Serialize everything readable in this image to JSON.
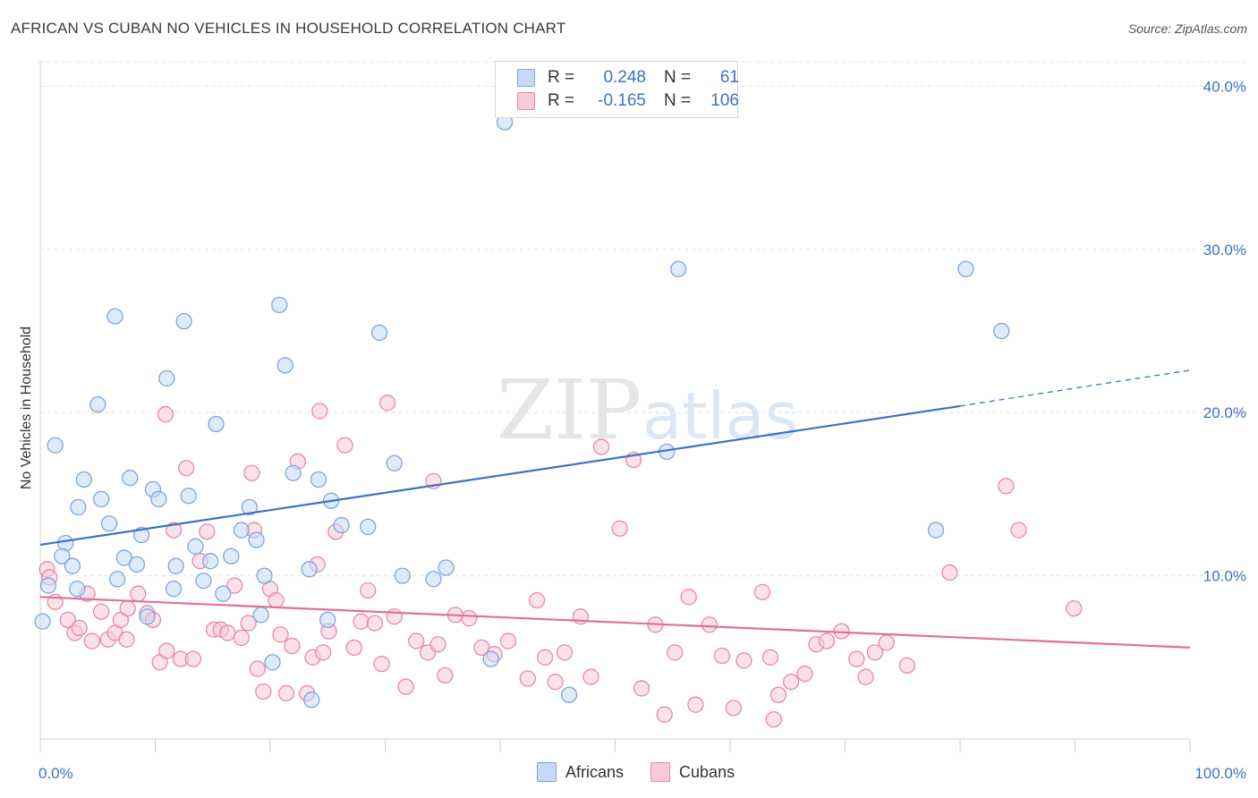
{
  "header": {
    "title": "AFRICAN VS CUBAN NO VEHICLES IN HOUSEHOLD CORRELATION CHART",
    "source": "Source: ZipAtlas.com"
  },
  "watermark": {
    "zip": "ZIP",
    "atlas": "atlas"
  },
  "legend": {
    "rows": [
      {
        "r_label": "R =",
        "r_value": "0.248",
        "n_label": "N =",
        "n_value": "61",
        "color": "#7aa7e0",
        "fill": "#c6daf5"
      },
      {
        "r_label": "R =",
        "r_value": "-0.165",
        "n_label": "N =",
        "n_value": "106",
        "color": "#e889a8",
        "fill": "#f8c9d8"
      }
    ]
  },
  "bottom_legend": {
    "africans": "Africans",
    "cubans": "Cubans"
  },
  "chart_data": {
    "type": "scatter",
    "title": "AFRICAN VS CUBAN NO VEHICLES IN HOUSEHOLD CORRELATION CHART",
    "ylabel": "No Vehicles in Household",
    "xlabel": "",
    "xlim": [
      0,
      100
    ],
    "ylim": [
      0,
      42
    ],
    "x_tick_labels": [
      "0.0%",
      "100.0%"
    ],
    "y_ticks": [
      10,
      20,
      30,
      40
    ],
    "y_tick_labels": [
      "10.0%",
      "20.0%",
      "30.0%",
      "40.0%"
    ],
    "grid": true,
    "legend_placement": "top-center",
    "series": [
      {
        "name": "Africans",
        "color": "#3b73c4",
        "marker_fill": "#c6daf5",
        "marker_stroke": "#7aa7e0",
        "trend": {
          "x0": 0,
          "y0": 11.9,
          "x1": 80,
          "y1": 20.4,
          "dash_to_x": 100,
          "dash_to_y": 22.6
        },
        "points": [
          [
            1.3,
            18.0
          ],
          [
            6.5,
            25.9
          ],
          [
            12.5,
            25.6
          ],
          [
            20.8,
            26.6
          ],
          [
            11,
            22.1
          ],
          [
            21.3,
            22.9
          ],
          [
            29.5,
            24.9
          ],
          [
            5,
            20.5
          ],
          [
            15.3,
            19.3
          ],
          [
            3.8,
            15.9
          ],
          [
            5.3,
            14.7
          ],
          [
            7.8,
            16.0
          ],
          [
            9.8,
            15.3
          ],
          [
            12.9,
            14.9
          ],
          [
            10.3,
            14.7
          ],
          [
            3.3,
            14.2
          ],
          [
            18.2,
            14.2
          ],
          [
            6,
            13.2
          ],
          [
            17.5,
            12.8
          ],
          [
            8.8,
            12.5
          ],
          [
            2.2,
            12.0
          ],
          [
            18.8,
            12.2
          ],
          [
            13.5,
            11.8
          ],
          [
            22,
            16.3
          ],
          [
            24.2,
            15.9
          ],
          [
            25.3,
            14.6
          ],
          [
            26.2,
            13.1
          ],
          [
            28.5,
            13.0
          ],
          [
            1.9,
            11.2
          ],
          [
            7.3,
            11.1
          ],
          [
            8.4,
            10.7
          ],
          [
            14.8,
            10.9
          ],
          [
            16.6,
            11.2
          ],
          [
            2.8,
            10.6
          ],
          [
            11.8,
            10.6
          ],
          [
            19.5,
            10.0
          ],
          [
            23.4,
            10.4
          ],
          [
            30.8,
            16.9
          ],
          [
            6.7,
            9.8
          ],
          [
            14.2,
            9.7
          ],
          [
            0.7,
            9.4
          ],
          [
            3.2,
            9.2
          ],
          [
            11.6,
            9.2
          ],
          [
            15.9,
            8.9
          ],
          [
            9.3,
            7.5
          ],
          [
            19.2,
            7.6
          ],
          [
            25,
            7.3
          ],
          [
            31.5,
            10.0
          ],
          [
            34.2,
            9.8
          ],
          [
            35.3,
            10.5
          ],
          [
            39.2,
            4.9
          ],
          [
            46,
            2.7
          ],
          [
            40.4,
            37.8
          ],
          [
            54.5,
            17.6
          ],
          [
            55.5,
            28.8
          ],
          [
            77.9,
            12.8
          ],
          [
            80.5,
            28.8
          ],
          [
            83.6,
            25.0
          ],
          [
            0.2,
            7.2
          ],
          [
            23.6,
            2.4
          ],
          [
            20.2,
            4.7
          ]
        ]
      },
      {
        "name": "Cubans",
        "color": "#e0709a",
        "marker_fill": "#f8c9d8",
        "marker_stroke": "#e889a8",
        "trend": {
          "x0": 0,
          "y0": 8.7,
          "x1": 100,
          "y1": 5.6
        },
        "points": [
          [
            0.6,
            10.4
          ],
          [
            0.8,
            9.9
          ],
          [
            1.3,
            8.4
          ],
          [
            2.4,
            7.3
          ],
          [
            3,
            6.5
          ],
          [
            3.4,
            6.8
          ],
          [
            4.5,
            6.0
          ],
          [
            4.1,
            8.9
          ],
          [
            5.3,
            7.8
          ],
          [
            5.9,
            6.1
          ],
          [
            6.5,
            6.5
          ],
          [
            7,
            7.3
          ],
          [
            7.6,
            8.0
          ],
          [
            8.5,
            8.9
          ],
          [
            9.3,
            7.7
          ],
          [
            9.8,
            7.3
          ],
          [
            10.4,
            4.7
          ],
          [
            11,
            5.4
          ],
          [
            11.6,
            12.8
          ],
          [
            12.2,
            4.9
          ],
          [
            12.7,
            16.6
          ],
          [
            13.3,
            4.9
          ],
          [
            13.9,
            10.9
          ],
          [
            14.5,
            12.7
          ],
          [
            15.1,
            6.7
          ],
          [
            15.7,
            6.7
          ],
          [
            16.3,
            6.5
          ],
          [
            16.9,
            9.4
          ],
          [
            17.5,
            6.2
          ],
          [
            18.1,
            7.1
          ],
          [
            18.4,
            16.3
          ],
          [
            18.9,
            4.3
          ],
          [
            19.4,
            2.9
          ],
          [
            20,
            9.2
          ],
          [
            20.5,
            8.5
          ],
          [
            20.9,
            6.4
          ],
          [
            21.4,
            2.8
          ],
          [
            21.9,
            5.7
          ],
          [
            22.4,
            17.0
          ],
          [
            23.2,
            2.8
          ],
          [
            23.7,
            5.0
          ],
          [
            24.1,
            10.7
          ],
          [
            24.6,
            5.3
          ],
          [
            25.1,
            6.6
          ],
          [
            25.7,
            12.7
          ],
          [
            26.5,
            18.0
          ],
          [
            27.3,
            5.6
          ],
          [
            27.9,
            7.2
          ],
          [
            28.5,
            9.1
          ],
          [
            29.1,
            7.1
          ],
          [
            29.7,
            4.6
          ],
          [
            30.2,
            20.6
          ],
          [
            30.8,
            7.5
          ],
          [
            31.8,
            3.2
          ],
          [
            32.7,
            6.0
          ],
          [
            33.7,
            5.3
          ],
          [
            34.2,
            15.8
          ],
          [
            34.6,
            5.8
          ],
          [
            35.2,
            3.9
          ],
          [
            36.1,
            7.6
          ],
          [
            37.3,
            7.4
          ],
          [
            38.4,
            5.6
          ],
          [
            39.5,
            5.2
          ],
          [
            40.7,
            6.0
          ],
          [
            42.4,
            3.7
          ],
          [
            43.2,
            8.5
          ],
          [
            43.9,
            5.0
          ],
          [
            44.8,
            3.5
          ],
          [
            45.6,
            5.3
          ],
          [
            47,
            7.5
          ],
          [
            47.9,
            3.8
          ],
          [
            48.8,
            17.9
          ],
          [
            50.4,
            12.9
          ],
          [
            51.6,
            17.1
          ],
          [
            52.3,
            3.1
          ],
          [
            53.5,
            7.0
          ],
          [
            54.3,
            1.5
          ],
          [
            55.2,
            5.3
          ],
          [
            56.4,
            8.7
          ],
          [
            57,
            2.1
          ],
          [
            58.2,
            7.0
          ],
          [
            59.3,
            5.1
          ],
          [
            60.3,
            1.9
          ],
          [
            61.2,
            4.8
          ],
          [
            62.8,
            9.0
          ],
          [
            63.5,
            5.0
          ],
          [
            64.2,
            2.7
          ],
          [
            65.3,
            3.5
          ],
          [
            66.5,
            4.0
          ],
          [
            67.5,
            5.8
          ],
          [
            68.4,
            6.0
          ],
          [
            69.7,
            6.6
          ],
          [
            71,
            4.9
          ],
          [
            71.8,
            3.8
          ],
          [
            72.6,
            5.3
          ],
          [
            73.6,
            5.9
          ],
          [
            75.4,
            4.5
          ],
          [
            79.1,
            10.2
          ],
          [
            84,
            15.5
          ],
          [
            85.1,
            12.8
          ],
          [
            89.9,
            8.0
          ],
          [
            10.9,
            19.9
          ],
          [
            24.3,
            20.1
          ],
          [
            7.5,
            6.1
          ],
          [
            18.6,
            12.8
          ],
          [
            63.8,
            1.2
          ]
        ]
      }
    ]
  }
}
